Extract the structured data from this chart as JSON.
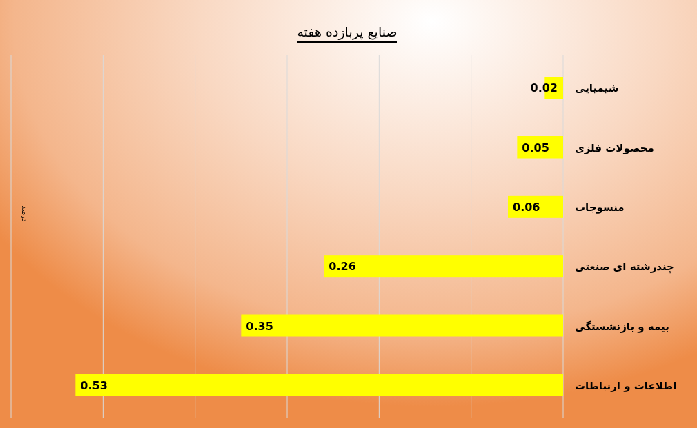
{
  "chart_data": {
    "type": "bar",
    "orientation": "horizontal",
    "title": "صنایع پربازده هفته",
    "ylabel": "درصد",
    "categories": [
      "شیمیایی",
      "محصولات فلزی",
      "منسوجات",
      "چندرشته ای صنعتی",
      "بیمه و بازنشستگی",
      "اطلاعات و ارتباطات"
    ],
    "values": [
      0.02,
      0.05,
      0.06,
      0.26,
      0.35,
      0.53
    ],
    "color": "#ffff00",
    "xlim": [
      0.6,
      0
    ],
    "xticks": [
      {
        "value": 0,
        "label": null
      },
      {
        "value": 0.1,
        "label": null
      },
      {
        "value": 0.2,
        "label": null
      },
      {
        "value": 0.3,
        "label": null
      },
      {
        "value": 0.4,
        "label": null
      },
      {
        "value": 0.5,
        "label": null
      },
      {
        "value": 0.6,
        "label": null
      }
    ],
    "grid": "x",
    "tick_labels": "y",
    "data_labels": true
  }
}
